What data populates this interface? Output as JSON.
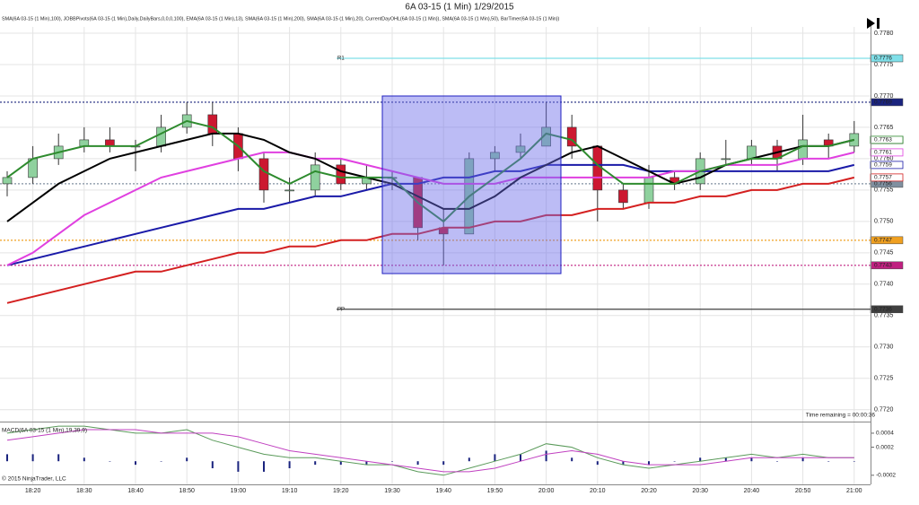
{
  "chart_data": [
    {
      "type": "candlestick",
      "title": "6A 03-15 (1 Min)  1/29/2015",
      "subtitle": "SMA(6A 03-15 (1 Min),100), JOBBPivots(6A 03-15 (1 Min),Daily,DailyBars,0,0,0,100), EMA(6A 03-15 (1 Min),13), SMA(6A 03-15 (1 Min),200), SMA(6A 03-15 (1 Min),20), CurrentDayOHL(6A 03-15 (1 Min)), SMA(6A 03-15 (1 Min),50), BarTimer(6A 03-15 (1 Min))",
      "annotation": "Time remaining = 00:00:36",
      "categories": [
        null,
        "18:20",
        null,
        "18:30",
        null,
        "18:40",
        null,
        "18:50",
        null,
        "19:00",
        null,
        "19:10",
        null,
        "19:20",
        null,
        "19:30",
        null,
        "19:40",
        null,
        "19:50",
        null,
        "20:00",
        null,
        "20:10",
        null,
        "20:20",
        null,
        "20:30",
        null,
        "20:40",
        null,
        "20:50",
        null,
        "21:00"
      ],
      "open": [
        0.7756,
        0.7757,
        0.776,
        0.7762,
        0.7763,
        0.7762,
        0.7762,
        0.7765,
        0.7767,
        0.7764,
        0.776,
        0.7755,
        0.7755,
        0.7759,
        0.7756,
        0.7757,
        0.7757,
        0.7749,
        0.7748,
        0.776,
        0.7761,
        0.7762,
        0.7765,
        0.7762,
        0.7755,
        0.7753,
        0.7757,
        0.7756,
        0.776,
        0.776,
        0.7762,
        0.776,
        0.7763,
        0.7762
      ],
      "high": [
        0.7758,
        0.7762,
        0.7764,
        0.7765,
        0.7765,
        0.7763,
        0.7767,
        0.7769,
        0.7769,
        0.7765,
        0.7761,
        0.7757,
        0.7761,
        0.776,
        0.7759,
        0.7758,
        0.7757,
        0.7752,
        0.7761,
        0.7762,
        0.7764,
        0.7769,
        0.7767,
        0.7762,
        0.7756,
        0.7759,
        0.7758,
        0.7761,
        0.7763,
        0.7763,
        0.7763,
        0.7767,
        0.7764,
        0.7766
      ],
      "low": [
        0.7754,
        0.7756,
        0.7759,
        0.7761,
        0.7761,
        0.7758,
        0.7761,
        0.7764,
        0.7762,
        0.7758,
        0.7753,
        0.7753,
        0.7754,
        0.7755,
        0.7755,
        0.7755,
        0.7747,
        0.7743,
        0.7748,
        0.7758,
        0.776,
        0.7762,
        0.776,
        0.775,
        0.7752,
        0.7752,
        0.7755,
        0.7755,
        0.7759,
        0.7759,
        0.7758,
        0.7759,
        0.776,
        0.7761
      ],
      "close": [
        0.7757,
        0.776,
        0.7762,
        0.7763,
        0.7762,
        0.7762,
        0.7765,
        0.7767,
        0.7764,
        0.776,
        0.7755,
        0.7755,
        0.7759,
        0.7756,
        0.7757,
        0.7757,
        0.7749,
        0.7748,
        0.776,
        0.7761,
        0.7762,
        0.7765,
        0.7762,
        0.7755,
        0.7753,
        0.7757,
        0.7756,
        0.776,
        0.776,
        0.7762,
        0.776,
        0.7763,
        0.7762,
        0.7764
      ],
      "up_color": "#8fd19e",
      "down_color": "#cc1830",
      "series": [
        {
          "color": "#d42020",
          "values": [
            0.7737,
            0.7738,
            0.7739,
            0.774,
            0.7741,
            0.7742,
            0.7742,
            0.7743,
            0.7744,
            0.7745,
            0.7745,
            0.7746,
            0.7746,
            0.7747,
            0.7747,
            0.7748,
            0.7748,
            0.7749,
            0.7749,
            0.775,
            0.775,
            0.7751,
            0.7751,
            0.7752,
            0.7752,
            0.7753,
            0.7753,
            0.7754,
            0.7754,
            0.7755,
            0.7755,
            0.7756,
            0.7756,
            0.7757
          ]
        },
        {
          "color": "#1a1aa8",
          "values": [
            0.7743,
            0.7744,
            0.7745,
            0.7746,
            0.7747,
            0.7748,
            0.7749,
            0.775,
            0.7751,
            0.7752,
            0.7752,
            0.7753,
            0.7754,
            0.7754,
            0.7755,
            0.7756,
            0.7756,
            0.7757,
            0.7757,
            0.7758,
            0.7758,
            0.7759,
            0.7759,
            0.7759,
            0.7759,
            0.7758,
            0.7758,
            0.7758,
            0.7758,
            0.7758,
            0.7758,
            0.7758,
            0.7758,
            0.7759
          ]
        },
        {
          "color": "#e040e0",
          "values": [
            0.7743,
            0.7745,
            0.7748,
            0.7751,
            0.7753,
            0.7755,
            0.7757,
            0.7758,
            0.7759,
            0.776,
            0.7761,
            0.7761,
            0.776,
            0.776,
            0.7759,
            0.7758,
            0.7757,
            0.7756,
            0.7756,
            0.7756,
            0.7757,
            0.7757,
            0.7757,
            0.7757,
            0.7757,
            0.7757,
            0.7758,
            0.7758,
            0.7759,
            0.7759,
            0.7759,
            0.776,
            0.776,
            0.7761
          ]
        },
        {
          "color": "#000000",
          "values": [
            0.775,
            0.7753,
            0.7756,
            0.7758,
            0.776,
            0.7761,
            0.7762,
            0.7763,
            0.7764,
            0.7764,
            0.7763,
            0.7761,
            0.776,
            0.7758,
            0.7757,
            0.7756,
            0.7754,
            0.7752,
            0.7752,
            0.7754,
            0.7757,
            0.7759,
            0.7761,
            0.7762,
            0.776,
            0.7758,
            0.7756,
            0.7757,
            0.7759,
            0.776,
            0.7761,
            0.7762,
            0.7762,
            0.7763
          ]
        },
        {
          "color": "#2e8b2e",
          "values": [
            0.7757,
            0.776,
            0.7761,
            0.7762,
            0.7762,
            0.7762,
            0.7764,
            0.7766,
            0.7765,
            0.7762,
            0.7758,
            0.7756,
            0.7758,
            0.7757,
            0.7757,
            0.7757,
            0.7753,
            0.775,
            0.7754,
            0.7757,
            0.776,
            0.7764,
            0.7763,
            0.7759,
            0.7756,
            0.7756,
            0.7756,
            0.7758,
            0.7759,
            0.776,
            0.776,
            0.7762,
            0.7762,
            0.7763
          ]
        }
      ],
      "levels": [
        {
          "label": "R1",
          "value": 0.7776,
          "color": "#7fdfe8"
        },
        {
          "value": 0.7769,
          "color": "#1a237e"
        },
        {
          "value": 0.7756,
          "color": "#8090a0"
        },
        {
          "value": 0.7747,
          "color": "#f0a020"
        },
        {
          "value": 0.7743,
          "color": "#c02080"
        },
        {
          "label": "PP",
          "value": 0.7736,
          "color": "#404040"
        }
      ],
      "ylim": [
        0.77181,
        0.7781
      ],
      "yticks": [
        {
          "value": 0.772,
          "label": "0.7720"
        },
        0.7725,
        {
          "value": 0.773,
          "label": "0.7730"
        },
        0.7735,
        {
          "value": 0.774,
          "label": "0.7740"
        },
        0.7745,
        {
          "value": 0.775,
          "label": "0.7750"
        },
        0.7755,
        {
          "value": 0.776,
          "label": "0.7760"
        },
        0.7765,
        {
          "value": 0.777,
          "label": "0.7770"
        },
        0.7775,
        {
          "value": 0.778,
          "label": "0.7780"
        }
      ],
      "grid": true
    },
    {
      "type": "macd",
      "label": "MACD(6A 03-15 (1 Min),19,39,9)",
      "copyright": "© 2015 NinjaTrader, LLC",
      "series": [
        {
          "color": "#5a9a5a",
          "values": [
            0.0004,
            0.00045,
            0.0005,
            0.0005,
            0.00045,
            0.0004,
            0.0004,
            0.00045,
            0.0003,
            0.0002,
            0.0001,
            5e-05,
            5e-05,
            0,
            -5e-05,
            -5e-05,
            -0.00015,
            -0.0002,
            -0.0001,
            0,
            0.0001,
            0.00025,
            0.0002,
            5e-05,
            -5e-05,
            -0.0001,
            -5e-05,
            0,
            5e-05,
            0.0001,
            5e-05,
            0.0001,
            5e-05,
            5e-05
          ]
        },
        {
          "color": "#c040c0",
          "values": [
            0.0003,
            0.00035,
            0.0004,
            0.00045,
            0.00045,
            0.00045,
            0.0004,
            0.0004,
            0.0004,
            0.00035,
            0.00025,
            0.00015,
            0.0001,
            5e-05,
            0,
            -5e-05,
            -0.0001,
            -0.00015,
            -0.00015,
            -0.0001,
            0,
            0.0001,
            0.00015,
            0.0001,
            0,
            -5e-05,
            -5e-05,
            -5e-05,
            0,
            5e-05,
            5e-05,
            5e-05,
            5e-05,
            5e-05
          ]
        }
      ],
      "histogram": {
        "color": "#1a237e",
        "values": [
          0.0001,
          0.0001,
          0.0001,
          5e-05,
          0,
          -5e-05,
          0,
          5e-05,
          -0.0001,
          -0.00015,
          -0.00015,
          -0.0001,
          -5e-05,
          -5e-05,
          -5e-05,
          0,
          -5e-05,
          -5e-05,
          5e-05,
          0.0001,
          0.0001,
          0.00015,
          5e-05,
          -5e-05,
          -5e-05,
          -5e-05,
          0,
          5e-05,
          5e-05,
          5e-05,
          0,
          5e-05,
          0,
          0
        ]
      },
      "ylim": [
        -0.00033,
        0.00054
      ],
      "yticks": [
        -0.0002,
        0.0002,
        0.0004
      ]
    }
  ]
}
